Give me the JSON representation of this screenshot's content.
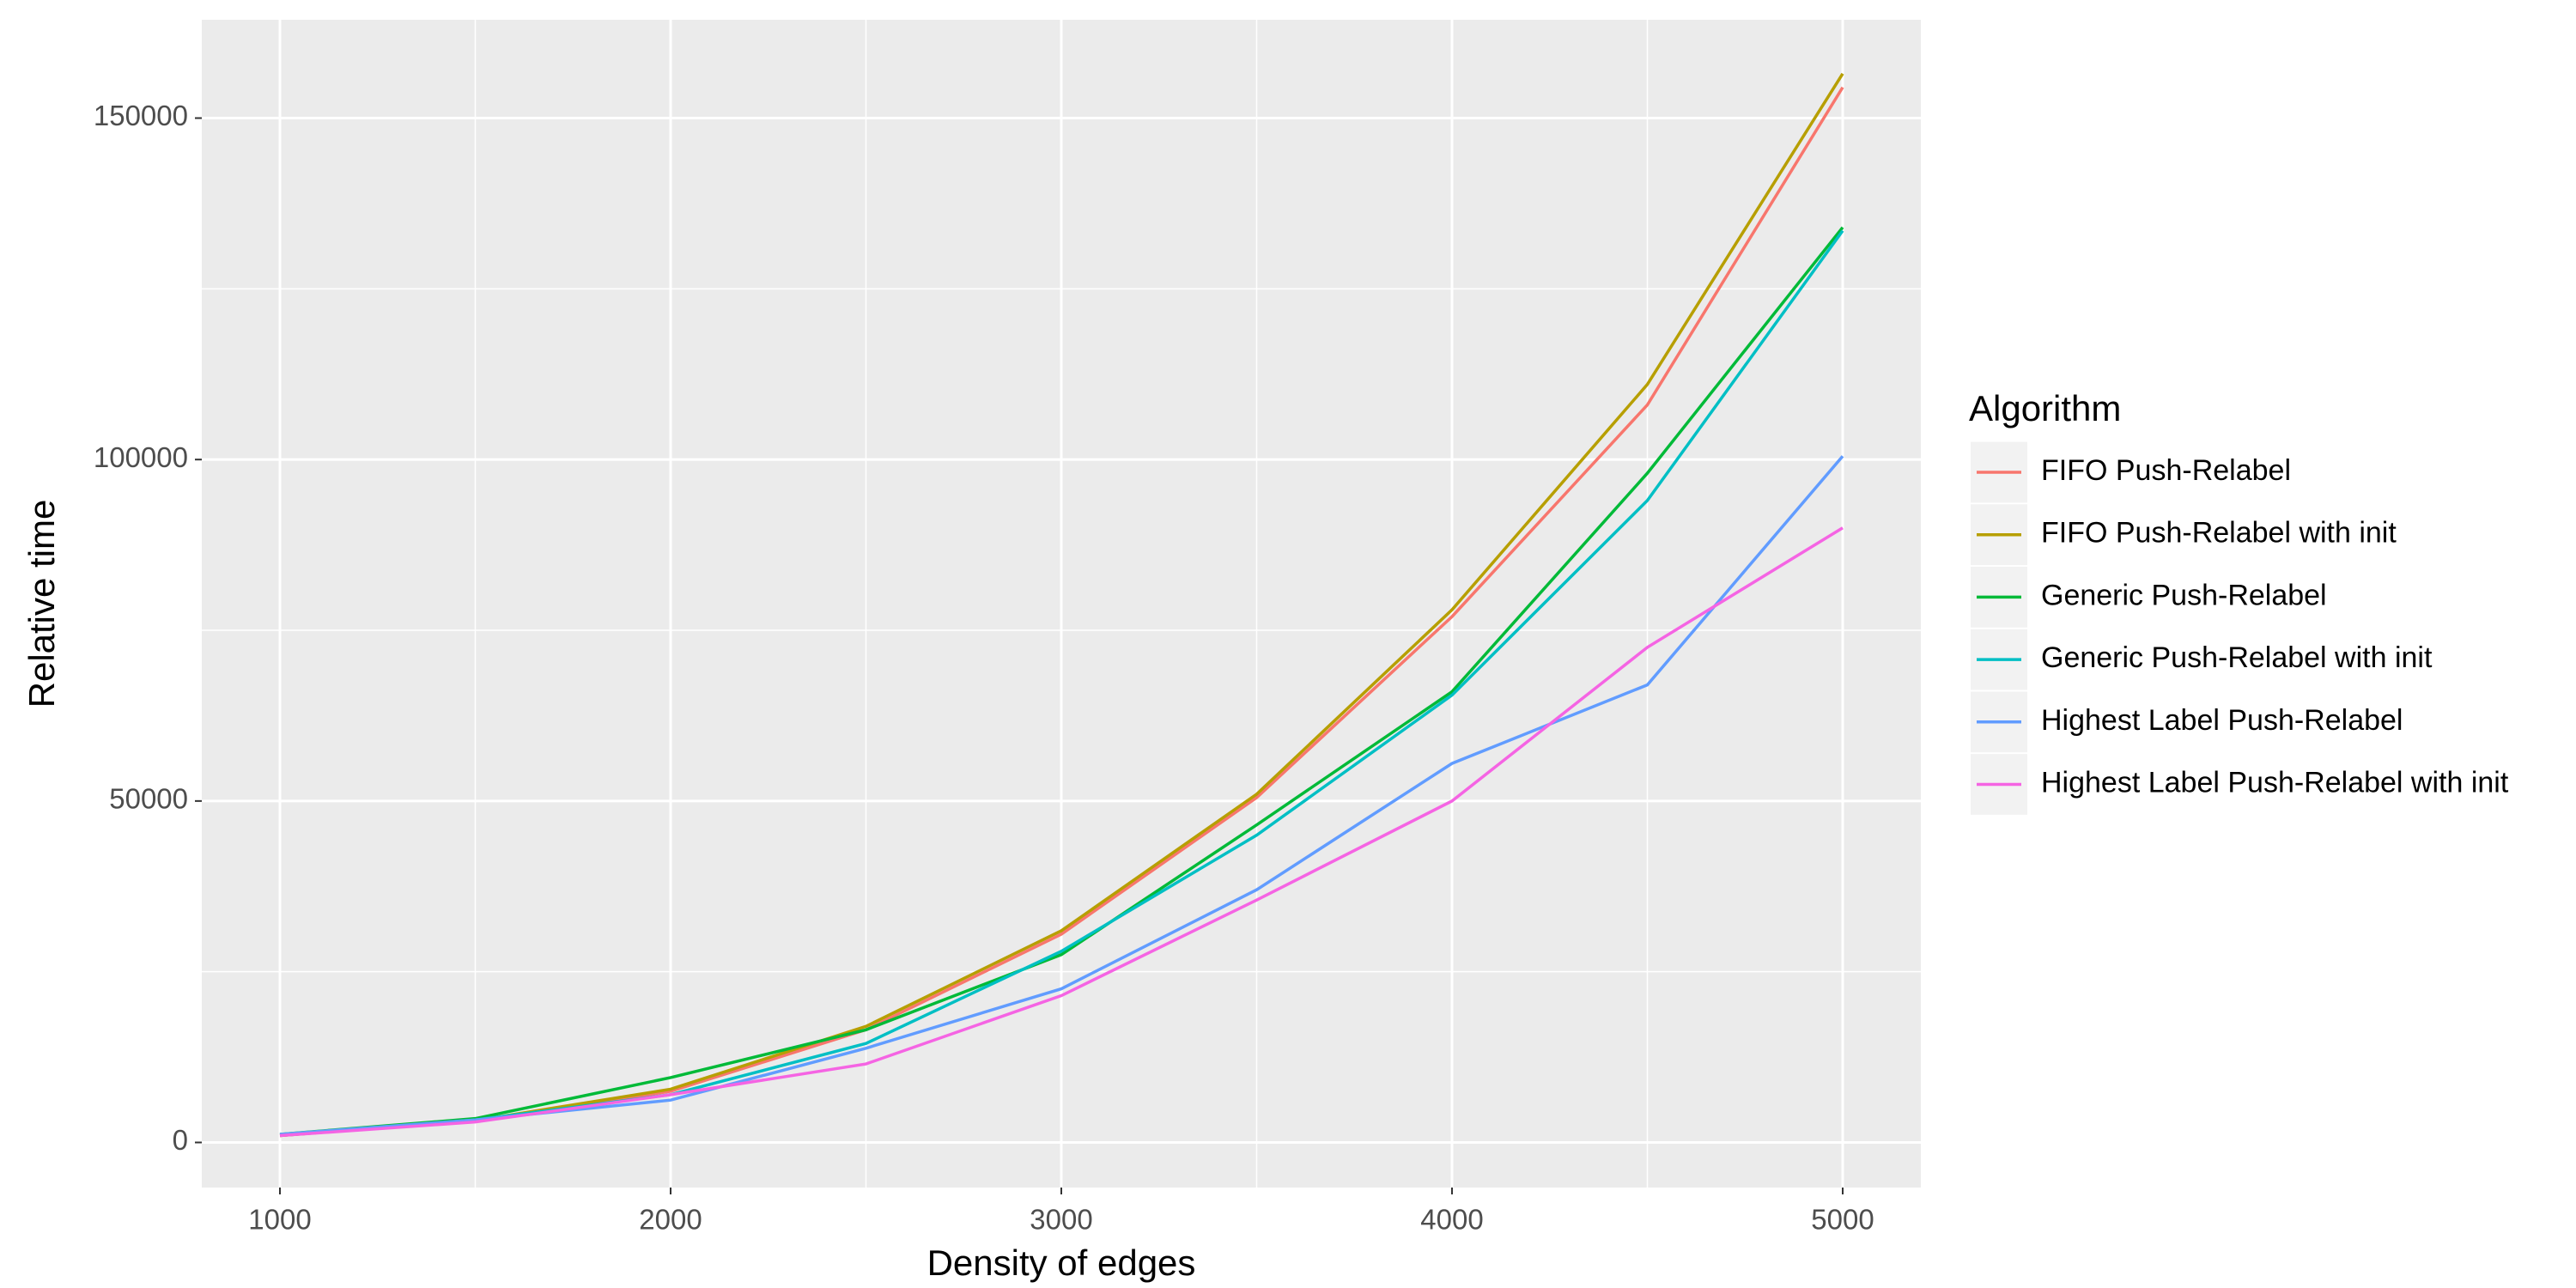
{
  "chart_data": {
    "type": "line",
    "x_label": "Density of edges",
    "y_label": "Relative time",
    "legend_title": "Algorithm",
    "x": [
      1000,
      1500,
      2000,
      2500,
      3000,
      3500,
      4000,
      4500,
      5000
    ],
    "series": [
      {
        "name": "FIFO Push-Relabel",
        "color": "#F8766D",
        "values": [
          1000,
          3200,
          7500,
          16500,
          30500,
          50500,
          77000,
          108000,
          154500
        ]
      },
      {
        "name": "FIFO Push-Relabel with init",
        "color": "#B79F00",
        "values": [
          1000,
          3200,
          7800,
          17000,
          31000,
          51000,
          78000,
          111000,
          156500
        ]
      },
      {
        "name": "Generic Push-Relabel",
        "color": "#00BA38",
        "values": [
          1200,
          3500,
          9500,
          16500,
          27500,
          46500,
          66000,
          98000,
          134000
        ]
      },
      {
        "name": "Generic Push-Relabel with init",
        "color": "#00BFC4",
        "values": [
          1100,
          3300,
          7000,
          14500,
          28000,
          45000,
          65500,
          94000,
          133500
        ]
      },
      {
        "name": "Highest Label Push-Relabel",
        "color": "#619CFF",
        "values": [
          1200,
          3300,
          6200,
          13800,
          22500,
          37000,
          55500,
          67000,
          100500
        ]
      },
      {
        "name": "Highest Label Push-Relabel with init",
        "color": "#F564E3",
        "values": [
          1000,
          3000,
          7000,
          11500,
          21500,
          35500,
          50000,
          72500,
          90000
        ]
      }
    ],
    "xlim": [
      800,
      5200
    ],
    "ylim": [
      -6600,
      164400
    ],
    "xticks": [
      1000,
      2000,
      3000,
      4000,
      5000
    ],
    "yticks": [
      0,
      50000,
      100000,
      150000
    ],
    "grid": true,
    "legend_position": "right"
  }
}
